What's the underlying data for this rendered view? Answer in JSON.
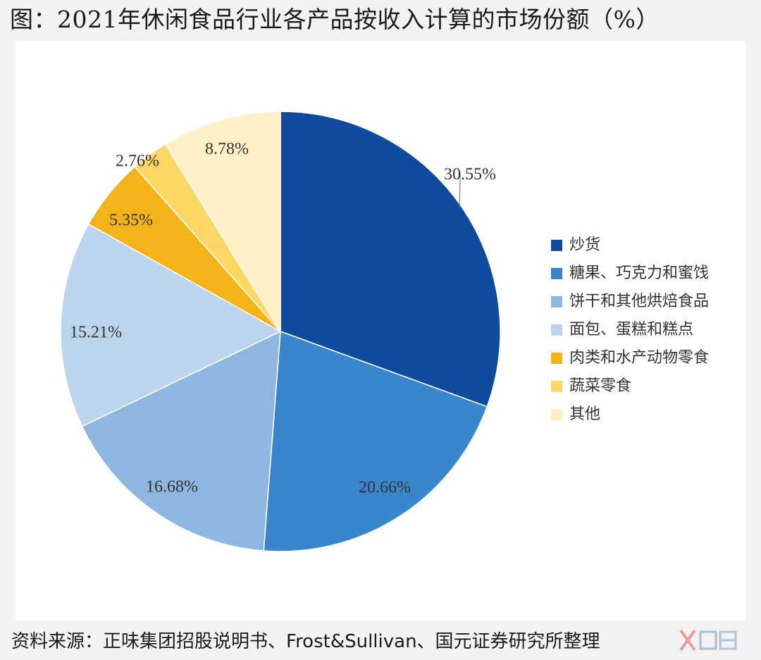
{
  "title": "图：2021年休闲食品行业各产品按收入计算的市场份额（%）",
  "source": "资料来源：正味集团招股说明书、Frost&Sullivan、国元证券研究所整理",
  "chart_data": {
    "type": "pie",
    "title": "图：2021年休闲食品行业各产品按收入计算的市场份额（%）",
    "unit": "%",
    "legend_position": "right",
    "start_angle_deg": 0,
    "direction": "clockwise",
    "slices": [
      {
        "name": "炒货",
        "value": 30.55,
        "label": "30.55%",
        "color": "#0e4b9e"
      },
      {
        "name": "糖果、巧克力和蜜饯",
        "value": 20.66,
        "label": "20.66%",
        "color": "#3a86cc"
      },
      {
        "name": "饼干和其他烘焙食品",
        "value": 16.68,
        "label": "16.68%",
        "color": "#8db7e0"
      },
      {
        "name": "面包、蛋糕和糕点",
        "value": 15.21,
        "label": "15.21%",
        "color": "#bcd5ed"
      },
      {
        "name": "肉类和水产动物零食",
        "value": 5.35,
        "label": "5.35%",
        "color": "#f5b31a"
      },
      {
        "name": "蔬菜零食",
        "value": 2.76,
        "label": "2.76%",
        "color": "#fbd766"
      },
      {
        "name": "其他",
        "value": 8.78,
        "label": "8.78%",
        "color": "#fff0c8"
      }
    ]
  }
}
